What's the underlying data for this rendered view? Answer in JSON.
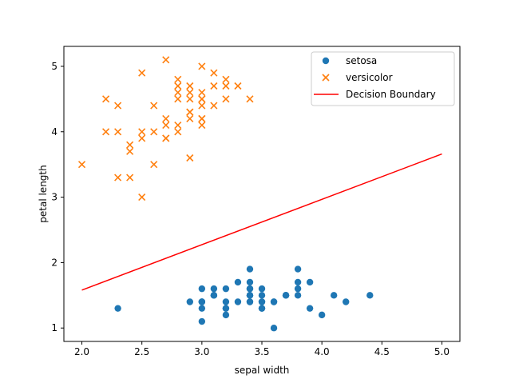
{
  "chart_data": {
    "type": "scatter",
    "xlabel": "sepal width",
    "ylabel": "petal length",
    "xlim": [
      1.85,
      5.15
    ],
    "ylim": [
      0.795,
      5.305
    ],
    "xticks": [
      2.0,
      2.5,
      3.0,
      3.5,
      4.0,
      4.5,
      5.0
    ],
    "xtick_labels": [
      "2.0",
      "2.5",
      "3.0",
      "3.5",
      "4.0",
      "4.5",
      "5.0"
    ],
    "yticks": [
      1,
      2,
      3,
      4,
      5
    ],
    "ytick_labels": [
      "1",
      "2",
      "3",
      "4",
      "5"
    ],
    "grid": false,
    "legend_position": "top-right",
    "series": [
      {
        "name": "setosa",
        "kind": "scatter",
        "marker": "circle",
        "color": "#1f77b4",
        "points": [
          [
            3.5,
            1.4
          ],
          [
            3.0,
            1.4
          ],
          [
            3.2,
            1.3
          ],
          [
            3.1,
            1.5
          ],
          [
            3.6,
            1.4
          ],
          [
            3.9,
            1.7
          ],
          [
            3.4,
            1.4
          ],
          [
            3.4,
            1.5
          ],
          [
            2.9,
            1.4
          ],
          [
            3.1,
            1.5
          ],
          [
            3.7,
            1.5
          ],
          [
            3.4,
            1.6
          ],
          [
            3.0,
            1.4
          ],
          [
            3.0,
            1.1
          ],
          [
            4.0,
            1.2
          ],
          [
            4.4,
            1.5
          ],
          [
            3.9,
            1.3
          ],
          [
            3.5,
            1.4
          ],
          [
            3.8,
            1.7
          ],
          [
            3.8,
            1.5
          ],
          [
            3.4,
            1.7
          ],
          [
            3.7,
            1.5
          ],
          [
            3.6,
            1.0
          ],
          [
            3.3,
            1.7
          ],
          [
            3.4,
            1.9
          ],
          [
            3.0,
            1.6
          ],
          [
            3.4,
            1.6
          ],
          [
            3.5,
            1.5
          ],
          [
            3.4,
            1.4
          ],
          [
            3.2,
            1.6
          ],
          [
            3.1,
            1.6
          ],
          [
            3.4,
            1.5
          ],
          [
            4.1,
            1.5
          ],
          [
            4.2,
            1.4
          ],
          [
            3.1,
            1.5
          ],
          [
            3.2,
            1.2
          ],
          [
            3.5,
            1.3
          ],
          [
            3.6,
            1.4
          ],
          [
            3.0,
            1.3
          ],
          [
            3.4,
            1.5
          ],
          [
            3.5,
            1.3
          ],
          [
            2.3,
            1.3
          ],
          [
            3.2,
            1.3
          ],
          [
            3.5,
            1.6
          ],
          [
            3.8,
            1.9
          ],
          [
            3.0,
            1.4
          ],
          [
            3.8,
            1.6
          ],
          [
            3.2,
            1.4
          ],
          [
            3.7,
            1.5
          ],
          [
            3.3,
            1.4
          ]
        ]
      },
      {
        "name": "versicolor",
        "kind": "scatter",
        "marker": "x",
        "color": "#ff7f0e",
        "points": [
          [
            3.2,
            4.7
          ],
          [
            3.2,
            4.5
          ],
          [
            3.1,
            4.9
          ],
          [
            2.3,
            4.0
          ],
          [
            2.8,
            4.6
          ],
          [
            2.8,
            4.5
          ],
          [
            3.3,
            4.7
          ],
          [
            2.4,
            3.3
          ],
          [
            2.9,
            4.6
          ],
          [
            2.7,
            3.9
          ],
          [
            2.0,
            3.5
          ],
          [
            3.0,
            4.2
          ],
          [
            2.2,
            4.0
          ],
          [
            2.9,
            4.7
          ],
          [
            2.9,
            3.6
          ],
          [
            3.1,
            4.4
          ],
          [
            3.0,
            4.5
          ],
          [
            2.7,
            4.1
          ],
          [
            2.2,
            4.5
          ],
          [
            2.5,
            3.9
          ],
          [
            3.2,
            4.8
          ],
          [
            2.8,
            4.0
          ],
          [
            2.5,
            4.9
          ],
          [
            2.8,
            4.7
          ],
          [
            2.9,
            4.3
          ],
          [
            3.0,
            4.4
          ],
          [
            2.8,
            4.8
          ],
          [
            3.0,
            5.0
          ],
          [
            2.9,
            4.5
          ],
          [
            2.6,
            3.5
          ],
          [
            2.4,
            3.8
          ],
          [
            2.4,
            3.7
          ],
          [
            2.7,
            3.9
          ],
          [
            2.7,
            5.1
          ],
          [
            3.0,
            4.5
          ],
          [
            3.4,
            4.5
          ],
          [
            3.1,
            4.7
          ],
          [
            2.3,
            4.4
          ],
          [
            3.0,
            4.1
          ],
          [
            2.5,
            4.0
          ],
          [
            2.6,
            4.4
          ],
          [
            3.0,
            4.6
          ],
          [
            2.6,
            4.0
          ],
          [
            2.3,
            3.3
          ],
          [
            2.7,
            4.2
          ],
          [
            3.0,
            4.2
          ],
          [
            2.9,
            4.2
          ],
          [
            2.9,
            4.3
          ],
          [
            2.5,
            3.0
          ],
          [
            2.8,
            4.1
          ]
        ]
      },
      {
        "name": "Decision Boundary",
        "kind": "line",
        "color": "#ff0000",
        "points": [
          [
            2.0,
            1.58
          ],
          [
            5.0,
            3.66
          ]
        ]
      }
    ]
  }
}
